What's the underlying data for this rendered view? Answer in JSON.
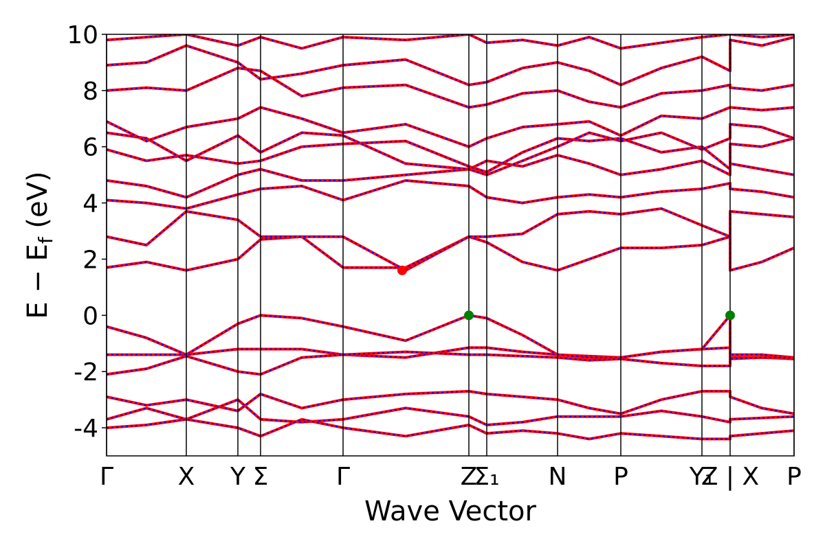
{
  "chart_data": {
    "type": "line",
    "xlabel": "Wave Vector",
    "ylabel": {
      "main": "E − E",
      "sub": "f",
      "tail": " (eV)"
    },
    "xlim": [
      0,
      10
    ],
    "ylim": [
      -5,
      10
    ],
    "yticks": [
      -4,
      -2,
      0,
      2,
      4,
      6,
      8,
      10
    ],
    "xticks": [
      {
        "value": 0,
        "label": "Γ"
      },
      {
        "value": 1.16,
        "label": "X"
      },
      {
        "value": 1.91,
        "label": "Y"
      },
      {
        "value": 2.24,
        "label": "Σ"
      },
      {
        "value": 3.44,
        "label": "Γ"
      },
      {
        "value": 5.27,
        "label": "Z"
      },
      {
        "value": 5.53,
        "label": "Σ₁"
      },
      {
        "value": 6.56,
        "label": "N"
      },
      {
        "value": 7.48,
        "label": "P"
      },
      {
        "value": 8.66,
        "label": "Y₁"
      },
      {
        "value": 9.07,
        "label": "Z | X"
      },
      {
        "value": 10,
        "label": "P"
      }
    ],
    "dash_color": "#0000ff",
    "x": [
      0,
      0.58,
      1.16,
      1.91,
      2.24,
      2.84,
      3.44,
      4.35,
      5.27,
      5.53,
      6.05,
      6.56,
      7.02,
      7.48,
      8.07,
      8.66,
      9.07,
      9.07,
      9.53,
      10
    ],
    "series": [
      {
        "color": "#ff0000",
        "values": [
          -0.4,
          -0.8,
          -1.4,
          -0.3,
          0,
          -0.1,
          -0.4,
          -0.9,
          0,
          -0.1,
          -0.7,
          -1.4,
          -1.45,
          -1.5,
          -1.3,
          -1.2,
          0,
          -1.4,
          -1.4,
          -1.5
        ]
      },
      {
        "color": "#ff0000",
        "values": [
          -1.4,
          -1.4,
          -1.4,
          -1.2,
          -1.2,
          -1.2,
          -1.4,
          -1.5,
          -1.15,
          -1.15,
          -1.3,
          -1.4,
          -1.5,
          -1.5,
          -1.3,
          -1.2,
          -1.15,
          -1.5,
          -1.5,
          -1.55
        ]
      },
      {
        "color": "#ff0000",
        "values": [
          -2.1,
          -1.9,
          -1.45,
          -2.0,
          -2.1,
          -1.5,
          -1.4,
          -1.3,
          -1.4,
          -1.4,
          -1.45,
          -1.5,
          -1.6,
          -1.55,
          -1.7,
          -1.8,
          -1.8,
          -1.55,
          -1.5,
          -1.5
        ]
      },
      {
        "color": "#ff0000",
        "values": [
          -2.9,
          -3.2,
          -3.0,
          -3.4,
          -2.8,
          -3.3,
          -3.0,
          -2.8,
          -2.7,
          -2.8,
          -2.9,
          -3.0,
          -3.3,
          -3.5,
          -3.0,
          -2.7,
          -2.7,
          -2.9,
          -3.3,
          -3.5
        ]
      },
      {
        "color": "#ff0000",
        "values": [
          -3.7,
          -3.3,
          -3.7,
          -3.0,
          -3.7,
          -3.8,
          -3.7,
          -3.3,
          -3.6,
          -3.9,
          -3.8,
          -3.6,
          -3.6,
          -3.6,
          -3.4,
          -3.6,
          -3.8,
          -3.7,
          -3.65,
          -3.6
        ]
      },
      {
        "color": "#ff0000",
        "values": [
          -4.0,
          -3.9,
          -3.7,
          -4.0,
          -4.3,
          -3.7,
          -4.0,
          -4.3,
          -3.9,
          -4.2,
          -4.1,
          -4.2,
          -4.4,
          -4.2,
          -4.3,
          -4.4,
          -4.4,
          -4.3,
          -4.2,
          -4.1
        ]
      },
      {
        "color": "#ff0000",
        "values": [
          1.7,
          1.9,
          1.6,
          2.0,
          2.7,
          2.8,
          1.7,
          1.7,
          2.8,
          2.6,
          1.9,
          1.6,
          2.0,
          2.4,
          2.4,
          2.5,
          2.8,
          1.6,
          1.9,
          2.4
        ]
      },
      {
        "color": "#ff0000",
        "values": [
          2.8,
          2.5,
          3.7,
          3.4,
          2.8,
          2.8,
          2.8,
          1.6,
          2.8,
          2.8,
          2.9,
          3.6,
          3.7,
          3.6,
          3.8,
          3.2,
          2.8,
          3.7,
          3.6,
          3.5
        ]
      },
      {
        "color": "#ff0000",
        "values": [
          4.1,
          4.0,
          3.8,
          4.3,
          4.5,
          4.6,
          4.1,
          4.8,
          4.6,
          4.2,
          4.0,
          4.2,
          4.3,
          4.2,
          4.4,
          4.5,
          4.7,
          4.5,
          4.4,
          4.2
        ]
      },
      {
        "color": "#ff0000",
        "values": [
          4.8,
          4.6,
          4.2,
          5.0,
          5.2,
          4.8,
          4.8,
          5.0,
          5.2,
          5.5,
          5.3,
          5.7,
          5.4,
          5.0,
          5.2,
          5.5,
          5.0,
          5.4,
          5.2,
          5.0
        ]
      },
      {
        "color": "#ff0000",
        "values": [
          5.9,
          5.5,
          5.7,
          5.4,
          5.5,
          6.0,
          6.1,
          6.2,
          5.3,
          5.1,
          5.8,
          6.3,
          6.2,
          6.3,
          5.8,
          6.0,
          5.2,
          6.1,
          6.0,
          6.3
        ]
      },
      {
        "color": "#ff0000",
        "values": [
          6.5,
          6.3,
          5.5,
          6.4,
          5.8,
          6.5,
          6.4,
          5.4,
          5.2,
          5.0,
          5.5,
          6.0,
          6.5,
          6.2,
          6.5,
          5.9,
          6.3,
          6.8,
          6.7,
          6.3
        ]
      },
      {
        "color": "#ff0000",
        "values": [
          6.9,
          6.2,
          6.7,
          7.0,
          7.4,
          7.0,
          6.5,
          6.8,
          6.0,
          6.3,
          6.7,
          6.8,
          6.9,
          6.4,
          7.1,
          7.0,
          7.4,
          7.4,
          7.3,
          7.4
        ]
      },
      {
        "color": "#ff0000",
        "values": [
          8.0,
          8.1,
          8.0,
          8.8,
          8.7,
          7.8,
          8.1,
          8.2,
          7.4,
          7.5,
          7.9,
          8.0,
          7.6,
          7.4,
          7.9,
          8.0,
          8.2,
          8.1,
          8.0,
          8.2
        ]
      },
      {
        "color": "#ff0000",
        "values": [
          8.9,
          9.0,
          9.6,
          9.0,
          8.4,
          8.6,
          8.9,
          9.1,
          8.2,
          8.3,
          8.8,
          9.0,
          8.7,
          8.2,
          8.8,
          9.2,
          8.7,
          9.8,
          9.6,
          9.9
        ]
      },
      {
        "color": "#ff0000",
        "values": [
          9.8,
          9.9,
          10.0,
          9.6,
          9.9,
          9.5,
          9.9,
          9.8,
          10.0,
          9.7,
          9.8,
          9.6,
          9.9,
          9.5,
          9.7,
          9.9,
          10.0,
          10.0,
          9.9,
          10.0
        ]
      }
    ],
    "points": [
      {
        "x": 4.3,
        "y": 1.6,
        "color": "#ff0000"
      },
      {
        "x": 5.27,
        "y": 0,
        "color": "#008000"
      },
      {
        "x": 9.07,
        "y": 0,
        "color": "#008000"
      }
    ]
  }
}
